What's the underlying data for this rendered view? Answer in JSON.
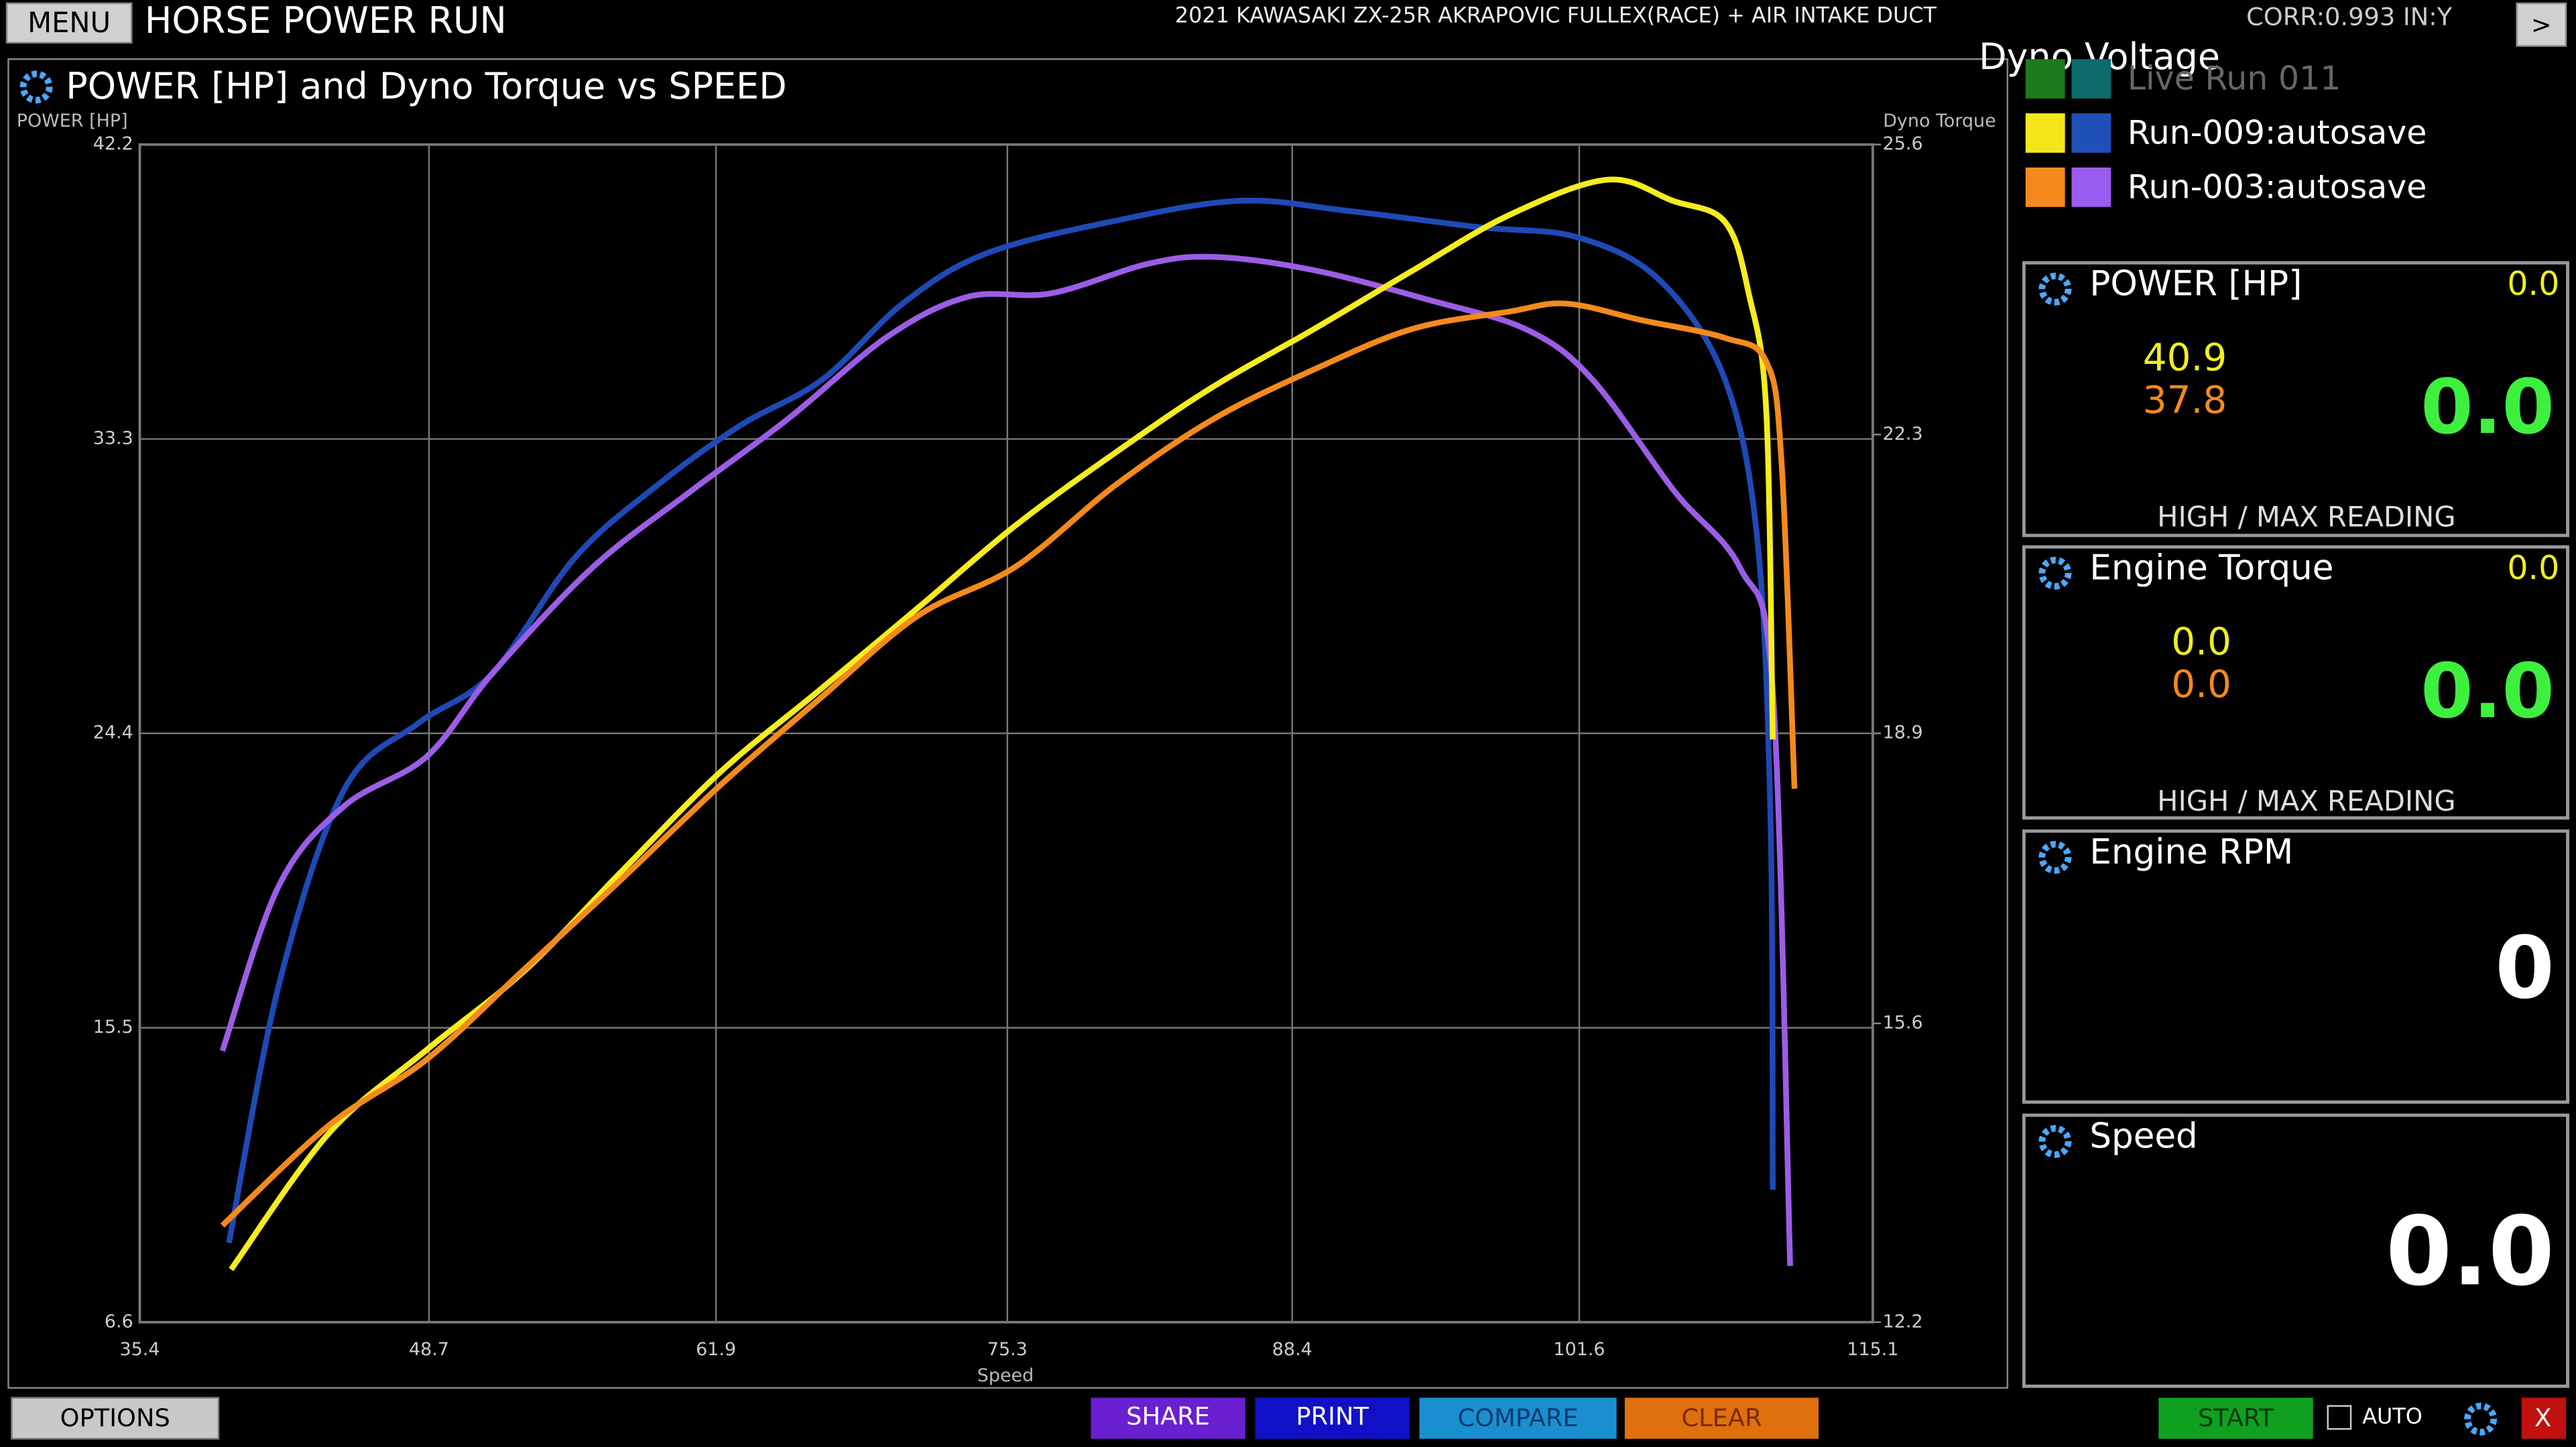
{
  "header": {
    "menu": "MENU",
    "title": "HORSE POWER RUN",
    "vehicle": "2021 KAWASAKI ZX-25R AKRAPOVIC FULLEX(RACE) + AIR INTAKE DUCT",
    "corr": "CORR:0.993 IN:Y",
    "next": ">",
    "overlay": "Dyno Voltage"
  },
  "legend": [
    {
      "label": "Live Run 011",
      "colors": [
        "#1d7a1d",
        "#0e6b6b"
      ]
    },
    {
      "label": "Run-009:autosave",
      "colors": [
        "#f5e61c",
        "#1f4fb8"
      ]
    },
    {
      "label": "Run-003:autosave",
      "colors": [
        "#f5891c",
        "#9a5cf0"
      ]
    }
  ],
  "chart_data": {
    "type": "line",
    "title": "POWER [HP] and Dyno Torque vs SPEED",
    "y_label": "POWER [HP]",
    "y2_label": "Dyno Torque",
    "x_label": "Speed",
    "xlim": [
      35.4,
      115.1
    ],
    "xticks": [
      35.4,
      48.7,
      61.9,
      75.3,
      88.4,
      101.6,
      115.1
    ],
    "ylim": [
      6.6,
      42.2
    ],
    "yticks": [
      6.6,
      15.5,
      24.4,
      33.3,
      42.2
    ],
    "y2lim": [
      12.2,
      25.6
    ],
    "y2ticks": [
      12.2,
      15.6,
      18.9,
      22.3,
      25.6
    ],
    "grid": true,
    "series": [
      {
        "color": "#1f49b5",
        "axis": "y",
        "x": [
          39.5,
          41.8,
          44.8,
          48.2,
          51.6,
          55.4,
          59.2,
          63.0,
          66.8,
          70.5,
          74.3,
          80.3,
          86.0,
          90.9,
          97.0,
          101.5,
          105.3,
          108.3,
          109.8,
          110.4,
          110.5
        ],
        "values": [
          9.0,
          16.8,
          22.7,
          24.7,
          26.2,
          29.7,
          31.9,
          33.7,
          35.1,
          37.4,
          38.9,
          39.9,
          40.5,
          40.2,
          39.7,
          39.4,
          38.1,
          35.1,
          30.2,
          21.7,
          10.6
        ]
      },
      {
        "color": "#9b5de5",
        "axis": "y",
        "x": [
          39.2,
          41.8,
          44.8,
          48.6,
          51.6,
          56.2,
          60.7,
          65.2,
          69.8,
          73.5,
          77.3,
          81.8,
          84.9,
          89.4,
          94.7,
          99.2,
          102.2,
          106.0,
          109.0,
          110.5,
          111.3
        ],
        "values": [
          14.8,
          19.8,
          22.2,
          23.7,
          26.2,
          29.4,
          31.7,
          33.9,
          36.4,
          37.6,
          37.7,
          38.6,
          38.8,
          38.4,
          37.5,
          36.6,
          35.1,
          31.7,
          29.4,
          25.7,
          8.3
        ]
      },
      {
        "color": "#f7ec1e",
        "axis": "y2",
        "x": [
          39.6,
          44.1,
          48.6,
          53.1,
          57.6,
          62.1,
          66.7,
          71.2,
          75.7,
          80.3,
          84.8,
          89.4,
          93.9,
          98.4,
          102.9,
          105.9,
          108.3,
          109.4,
          110.2,
          110.5
        ],
        "values": [
          12.8,
          14.35,
          15.3,
          16.2,
          17.34,
          18.46,
          19.4,
          20.33,
          21.27,
          22.1,
          22.85,
          23.5,
          24.16,
          24.8,
          25.2,
          24.96,
          24.72,
          23.9,
          22.57,
          18.83
        ]
      },
      {
        "color": "#f48a1c",
        "axis": "y2",
        "x": [
          39.2,
          44.1,
          48.6,
          53.1,
          57.6,
          62.1,
          66.7,
          71.2,
          75.7,
          80.3,
          84.8,
          89.4,
          93.9,
          98.4,
          101.0,
          104.5,
          108.3,
          110.2,
          110.9,
          111.5
        ],
        "values": [
          13.3,
          14.44,
          15.19,
          16.22,
          17.25,
          18.31,
          19.3,
          20.24,
          20.8,
          21.73,
          22.48,
          23.04,
          23.5,
          23.7,
          23.79,
          23.6,
          23.4,
          23.13,
          22.0,
          18.27
        ]
      }
    ]
  },
  "panels": [
    {
      "title": "POWER [HP]",
      "corner": "0.0",
      "high": "40.9",
      "low": "37.8",
      "main": "0.0",
      "footer": "HIGH / MAX READING"
    },
    {
      "title": "Engine Torque",
      "corner": "0.0",
      "high": "0.0",
      "low": "0.0",
      "main": "0.0",
      "footer": "HIGH / MAX READING"
    },
    {
      "title": "Engine RPM",
      "main": "0"
    },
    {
      "title": "Speed",
      "main": "0.0"
    }
  ],
  "buttons": {
    "options": "OPTIONS",
    "share": "SHARE",
    "print": "PRINT",
    "compare": "COMPARE",
    "clear": "CLEAR",
    "start": "START",
    "auto": "AUTO",
    "close": "X"
  }
}
